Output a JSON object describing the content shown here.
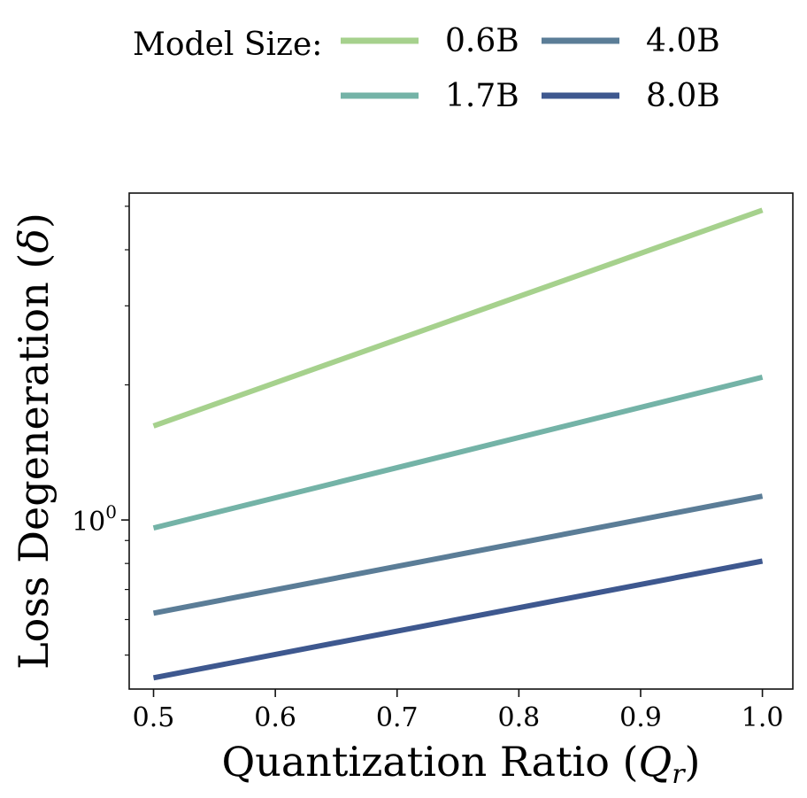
{
  "chart_data": {
    "type": "line",
    "xlabel": "Quantization Ratio (Q_r)",
    "ylabel": "Loss Degeneration (δ)",
    "xlim": [
      0.48,
      1.025
    ],
    "ylim": [
      0.42,
      5.35
    ],
    "yscale": "log",
    "grid": false,
    "legend": {
      "title": "Model Size:",
      "placement": "top",
      "columns": 2
    },
    "x_ticks": [
      "0.5",
      "0.6",
      "0.7",
      "0.8",
      "0.9",
      "1.0"
    ],
    "x_tick_values": [
      0.5,
      0.6,
      0.7,
      0.8,
      0.9,
      1.0
    ],
    "y_ticks": [
      {
        "value": 1.0,
        "base": "10",
        "exp": "0"
      }
    ],
    "series": [
      {
        "name": "0.6B",
        "color": "#a6d18d",
        "x": [
          0.5,
          1.0
        ],
        "y": [
          1.62,
          4.9
        ]
      },
      {
        "name": "1.7B",
        "color": "#74b3a7",
        "x": [
          0.5,
          1.0
        ],
        "y": [
          0.96,
          2.08
        ]
      },
      {
        "name": "4.0B",
        "color": "#5b7d97",
        "x": [
          0.5,
          1.0
        ],
        "y": [
          0.62,
          1.13
        ]
      },
      {
        "name": "8.0B",
        "color": "#3e588f",
        "x": [
          0.5,
          1.0
        ],
        "y": [
          0.445,
          0.81
        ]
      }
    ]
  }
}
